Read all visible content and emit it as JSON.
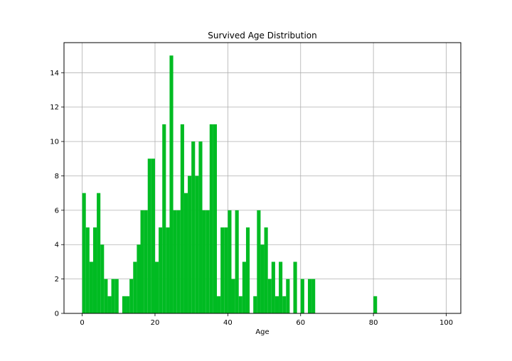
{
  "chart_data": {
    "type": "bar",
    "title": "Survived Age Distribution",
    "xlabel": "Age",
    "ylabel": "",
    "xlim": [
      -5,
      104
    ],
    "ylim": [
      0,
      15.75
    ],
    "xticks": [
      0,
      20,
      40,
      60,
      80,
      100
    ],
    "yticks": [
      0,
      2,
      4,
      6,
      8,
      10,
      12,
      14
    ],
    "grid": true,
    "bar_color": "#00bb22",
    "bin_width": 1,
    "bins": [
      {
        "x": 0,
        "count": 7
      },
      {
        "x": 1,
        "count": 5
      },
      {
        "x": 2,
        "count": 3
      },
      {
        "x": 3,
        "count": 5
      },
      {
        "x": 4,
        "count": 7
      },
      {
        "x": 5,
        "count": 4
      },
      {
        "x": 6,
        "count": 2
      },
      {
        "x": 7,
        "count": 1
      },
      {
        "x": 8,
        "count": 2
      },
      {
        "x": 9,
        "count": 2
      },
      {
        "x": 10,
        "count": 0
      },
      {
        "x": 11,
        "count": 1
      },
      {
        "x": 12,
        "count": 1
      },
      {
        "x": 13,
        "count": 2
      },
      {
        "x": 14,
        "count": 3
      },
      {
        "x": 15,
        "count": 4
      },
      {
        "x": 16,
        "count": 6
      },
      {
        "x": 17,
        "count": 6
      },
      {
        "x": 18,
        "count": 9
      },
      {
        "x": 19,
        "count": 9
      },
      {
        "x": 20,
        "count": 3
      },
      {
        "x": 21,
        "count": 5
      },
      {
        "x": 22,
        "count": 11
      },
      {
        "x": 23,
        "count": 5
      },
      {
        "x": 24,
        "count": 15
      },
      {
        "x": 25,
        "count": 6
      },
      {
        "x": 26,
        "count": 6
      },
      {
        "x": 27,
        "count": 11
      },
      {
        "x": 28,
        "count": 7
      },
      {
        "x": 29,
        "count": 8
      },
      {
        "x": 30,
        "count": 10
      },
      {
        "x": 31,
        "count": 8
      },
      {
        "x": 32,
        "count": 10
      },
      {
        "x": 33,
        "count": 6
      },
      {
        "x": 34,
        "count": 6
      },
      {
        "x": 35,
        "count": 11
      },
      {
        "x": 36,
        "count": 11
      },
      {
        "x": 37,
        "count": 1
      },
      {
        "x": 38,
        "count": 5
      },
      {
        "x": 39,
        "count": 5
      },
      {
        "x": 40,
        "count": 6
      },
      {
        "x": 41,
        "count": 2
      },
      {
        "x": 42,
        "count": 6
      },
      {
        "x": 43,
        "count": 1
      },
      {
        "x": 44,
        "count": 3
      },
      {
        "x": 45,
        "count": 5
      },
      {
        "x": 46,
        "count": 0
      },
      {
        "x": 47,
        "count": 1
      },
      {
        "x": 48,
        "count": 6
      },
      {
        "x": 49,
        "count": 4
      },
      {
        "x": 50,
        "count": 5
      },
      {
        "x": 51,
        "count": 2
      },
      {
        "x": 52,
        "count": 3
      },
      {
        "x": 53,
        "count": 1
      },
      {
        "x": 54,
        "count": 3
      },
      {
        "x": 55,
        "count": 1
      },
      {
        "x": 56,
        "count": 2
      },
      {
        "x": 57,
        "count": 0
      },
      {
        "x": 58,
        "count": 3
      },
      {
        "x": 59,
        "count": 0
      },
      {
        "x": 60,
        "count": 2
      },
      {
        "x": 61,
        "count": 0
      },
      {
        "x": 62,
        "count": 2
      },
      {
        "x": 63,
        "count": 2
      },
      {
        "x": 80,
        "count": 1
      }
    ]
  }
}
